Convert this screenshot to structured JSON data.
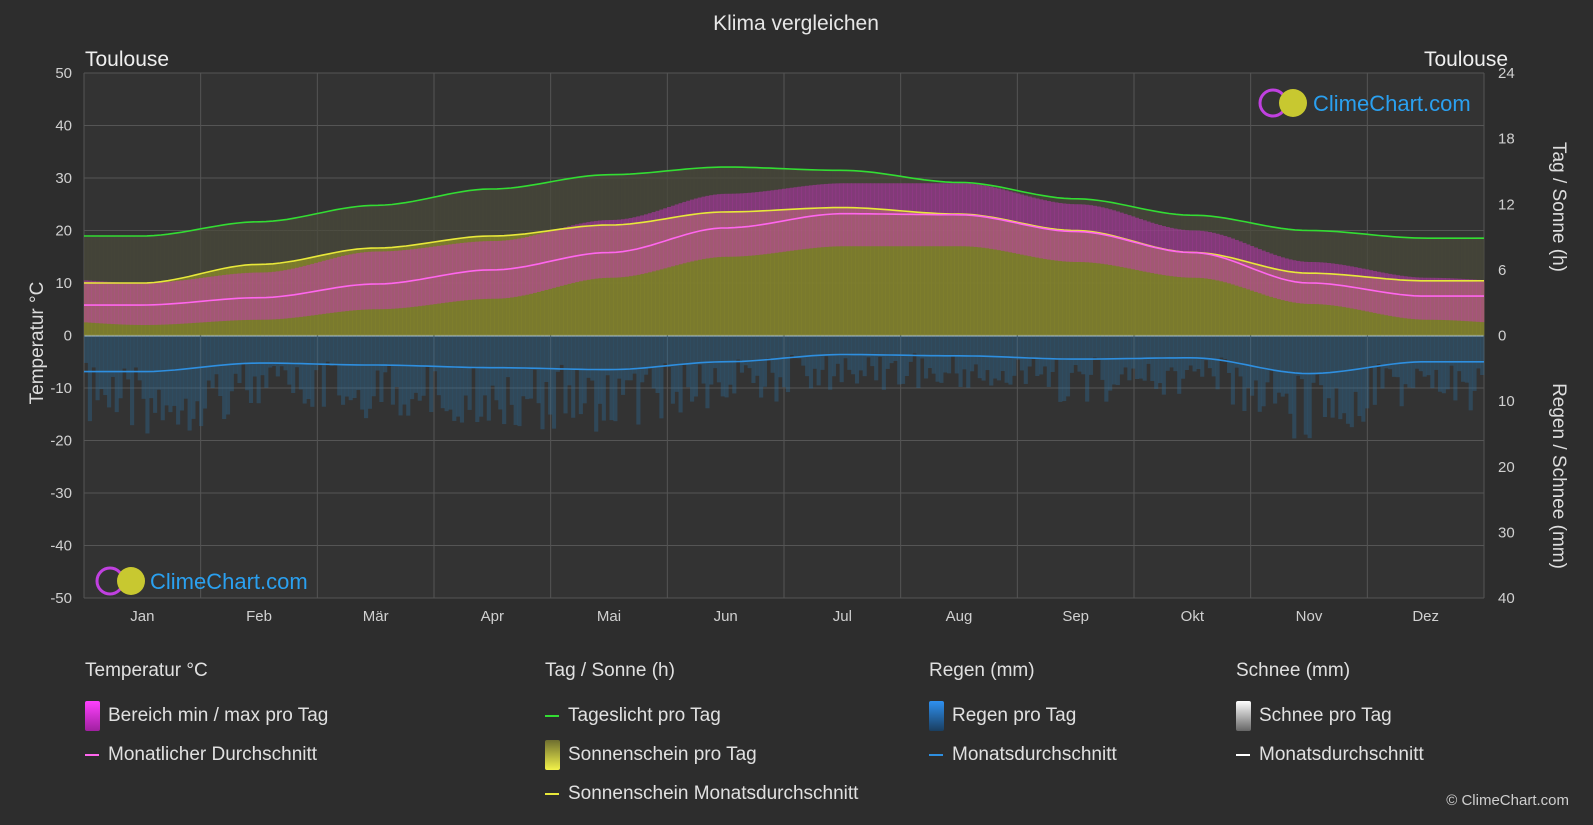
{
  "title": "Klima vergleichen",
  "location_left": "Toulouse",
  "location_right": "Toulouse",
  "brand": "ClimeChart.com",
  "copyright": "© ClimeChart.com",
  "axes": {
    "left_label": "Temperatur °C",
    "right_top_label": "Tag / Sonne (h)",
    "right_bottom_label": "Regen / Schnee (mm)",
    "left_ticks": [
      "50",
      "40",
      "30",
      "20",
      "10",
      "0",
      "-10",
      "-20",
      "-30",
      "-40",
      "-50"
    ],
    "right_top_ticks": [
      "24",
      "18",
      "12",
      "6",
      "0"
    ],
    "right_bottom_ticks": [
      "10",
      "20",
      "30",
      "40"
    ]
  },
  "legend": {
    "temp": {
      "title": "Temperatur °C",
      "range": "Bereich min / max pro Tag",
      "avg": "Monatlicher Durchschnitt"
    },
    "sun": {
      "title": "Tag / Sonne (h)",
      "daylight": "Tageslicht pro Tag",
      "sunshine": "Sonnenschein pro Tag",
      "sun_avg": "Sonnenschein Monatsdurchschnitt"
    },
    "rain": {
      "title": "Regen (mm)",
      "per_day": "Regen pro Tag",
      "avg": "Monatsdurchschnitt"
    },
    "snow": {
      "title": "Schnee (mm)",
      "per_day": "Schnee pro Tag",
      "avg": "Monatsdurchschnitt"
    }
  },
  "colors": {
    "daylight": "#33dd33",
    "sunshine_avg": "#e8e83a",
    "temp_avg": "#ff66ee",
    "rain_avg": "#2e8fe0",
    "snow_avg": "#ffffff",
    "temp_range": "#d030c8",
    "sunshine_fill": "#8c8c2a",
    "rain_fill": "#2a6fa0"
  },
  "chart_data": {
    "type": "line",
    "categories": [
      "Jan",
      "Feb",
      "Mär",
      "Apr",
      "Mai",
      "Jun",
      "Jul",
      "Aug",
      "Sep",
      "Okt",
      "Nov",
      "Dez"
    ],
    "temp_ylim": [
      -50,
      50
    ],
    "sun_ylim": [
      0,
      24
    ],
    "precip_ylim": [
      0,
      40
    ],
    "series": [
      {
        "name": "Tageslicht pro Tag",
        "axis": "sun",
        "values": [
          9.1,
          10.4,
          11.9,
          13.4,
          14.7,
          15.4,
          15.1,
          14.0,
          12.5,
          11.0,
          9.6,
          8.9
        ]
      },
      {
        "name": "Sonnenschein Monatsdurchschnitt",
        "axis": "sun",
        "values": [
          4.8,
          6.5,
          8.0,
          9.1,
          10.1,
          11.3,
          11.7,
          11.1,
          9.6,
          7.6,
          5.7,
          5.0
        ]
      },
      {
        "name": "Monatlicher Durchschnitt",
        "axis": "temp",
        "values": [
          5.8,
          7.2,
          9.8,
          12.5,
          15.8,
          20.5,
          23.2,
          23.0,
          19.8,
          15.8,
          10.0,
          7.5
        ]
      },
      {
        "name": "Monatsdurchschnitt (Regen)",
        "axis": "precip",
        "values": [
          5.5,
          4.2,
          4.5,
          4.9,
          5.2,
          4.0,
          2.9,
          3.1,
          3.6,
          3.4,
          5.8,
          4.0
        ]
      },
      {
        "name": "Monatsdurchschnitt (Schnee)",
        "axis": "precip",
        "values": [
          0,
          0,
          0,
          0,
          0,
          0,
          0,
          0,
          0,
          0,
          0,
          0
        ]
      }
    ],
    "temp_range_min": [
      2,
      3,
      5,
      7,
      11,
      15,
      17,
      17,
      14,
      11,
      6,
      3
    ],
    "temp_range_max": [
      10,
      12,
      16,
      18,
      22,
      27,
      29,
      29,
      25,
      20,
      14,
      11
    ]
  }
}
